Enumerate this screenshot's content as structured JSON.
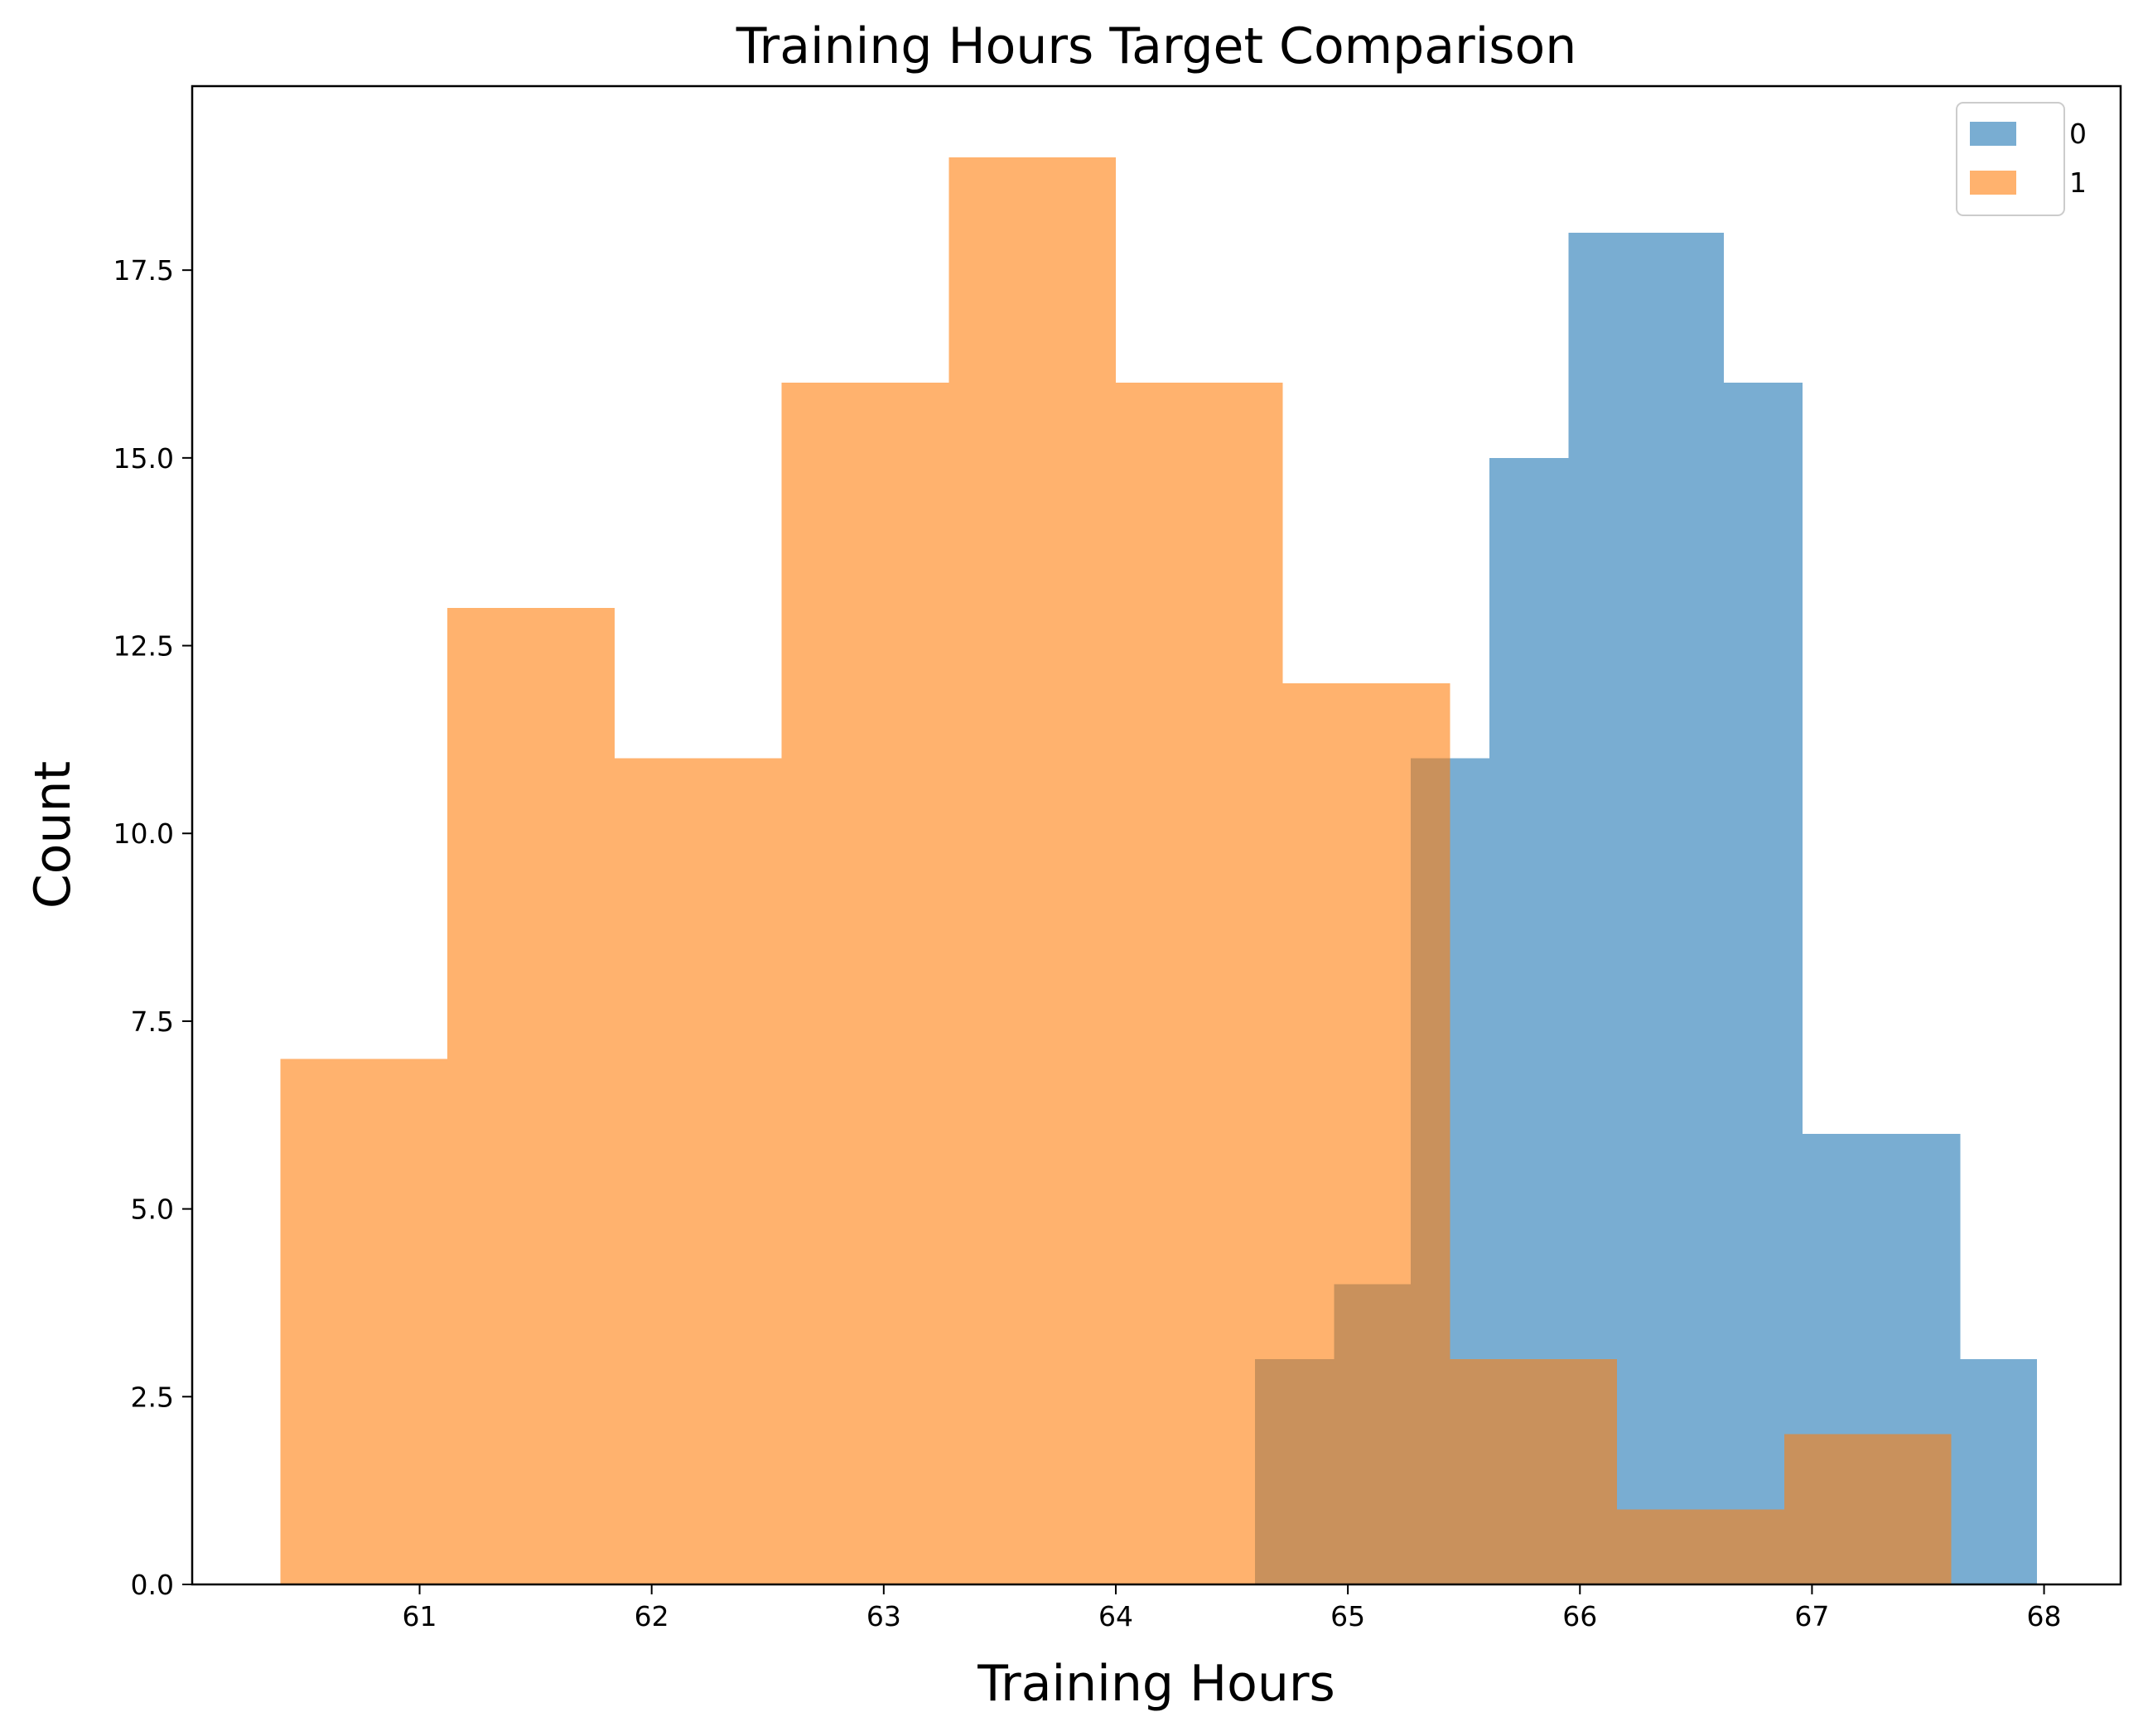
{
  "chart_data": {
    "type": "histogram",
    "title": "Training Hours Target Comparison",
    "xlabel": "Training Hours",
    "ylabel": "Count",
    "xlim": [
      60.02,
      68.33
    ],
    "ylim": [
      0,
      19.95
    ],
    "x_ticks": [
      61,
      62,
      63,
      64,
      65,
      66,
      67,
      68
    ],
    "x_tick_labels": [
      "61",
      "62",
      "63",
      "64",
      "65",
      "66",
      "67",
      "68"
    ],
    "y_ticks": [
      0,
      2.5,
      5,
      7.5,
      10,
      12.5,
      15,
      17.5
    ],
    "y_tick_labels": [
      "0.0",
      "2.5",
      "5.0",
      "7.5",
      "10.0",
      "12.5",
      "15.0",
      "17.5"
    ],
    "legend_position": "top-right",
    "grid": false,
    "series": [
      {
        "name": "0",
        "color": "#1f77b4",
        "alpha": 0.6,
        "bins": [
          {
            "start": 64.6,
            "end": 64.94,
            "count": 3
          },
          {
            "start": 64.94,
            "end": 65.27,
            "count": 4
          },
          {
            "start": 65.27,
            "end": 65.61,
            "count": 11
          },
          {
            "start": 65.61,
            "end": 65.95,
            "count": 15
          },
          {
            "start": 65.95,
            "end": 66.62,
            "count": 18
          },
          {
            "start": 66.62,
            "end": 66.96,
            "count": 16
          },
          {
            "start": 66.96,
            "end": 67.64,
            "count": 6
          },
          {
            "start": 67.64,
            "end": 67.97,
            "count": 3
          }
        ]
      },
      {
        "name": "1",
        "color": "#ff7f0e",
        "alpha": 0.6,
        "bins": [
          {
            "start": 60.4,
            "end": 61.12,
            "count": 7
          },
          {
            "start": 61.12,
            "end": 61.84,
            "count": 13
          },
          {
            "start": 61.84,
            "end": 62.56,
            "count": 11
          },
          {
            "start": 62.56,
            "end": 63.28,
            "count": 16
          },
          {
            "start": 63.28,
            "end": 64.0,
            "count": 19
          },
          {
            "start": 64.0,
            "end": 64.72,
            "count": 16
          },
          {
            "start": 64.72,
            "end": 65.44,
            "count": 12
          },
          {
            "start": 65.44,
            "end": 66.16,
            "count": 3
          },
          {
            "start": 66.16,
            "end": 66.88,
            "count": 1
          },
          {
            "start": 66.88,
            "end": 67.6,
            "count": 2
          }
        ]
      }
    ]
  }
}
